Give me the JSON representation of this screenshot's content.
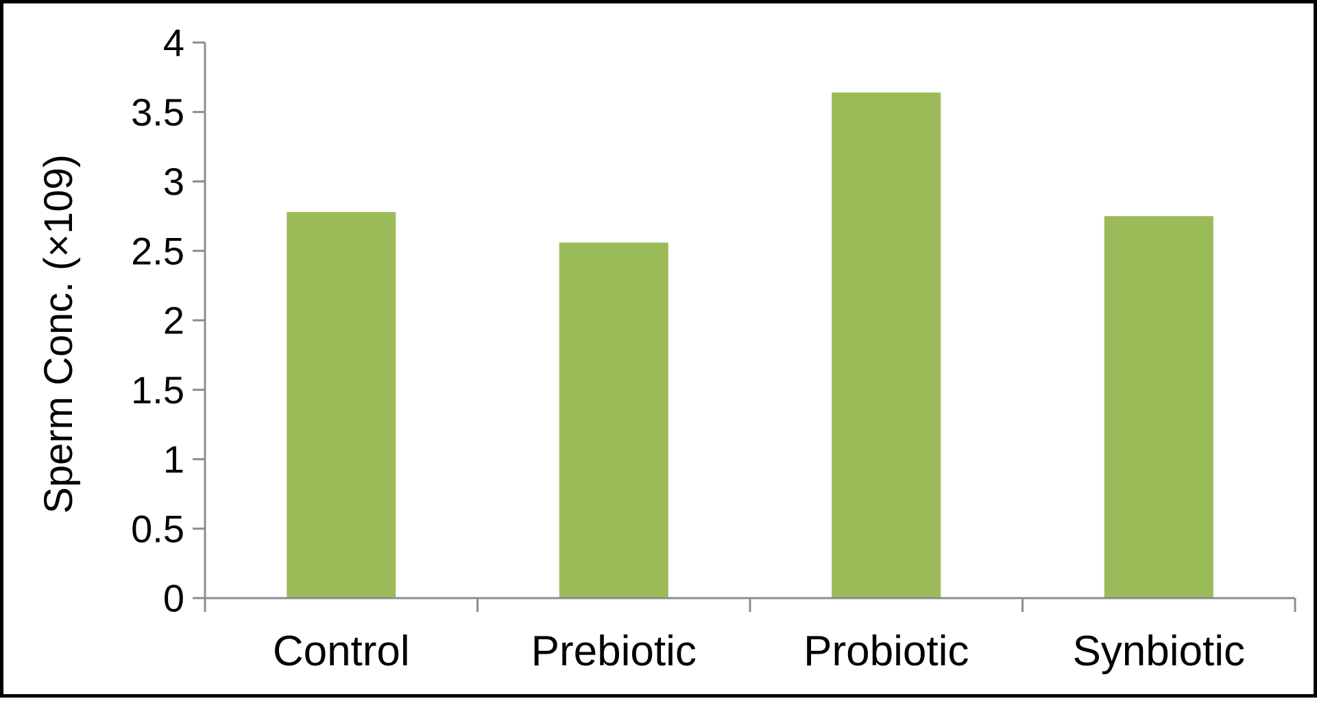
{
  "chart_data": {
    "type": "bar",
    "title": "",
    "xlabel": "",
    "ylabel": "Sperm Conc. (×109)",
    "categories": [
      "Control",
      "Prebiotic",
      "Probiotic",
      "Synbiotic"
    ],
    "values": [
      2.78,
      2.56,
      3.64,
      2.75
    ],
    "ylim": [
      0,
      4
    ],
    "yticks": [
      0,
      0.5,
      1,
      1.5,
      2,
      2.5,
      3,
      3.5,
      4
    ],
    "ytick_labels": [
      "0",
      "0.5",
      "1",
      "1.5",
      "2",
      "2.5",
      "3",
      "3.5",
      "4"
    ],
    "grid": false,
    "legend": "none",
    "colors": {
      "bar": "#9bbb59",
      "axis": "#8c8c8c",
      "text": "#000000",
      "border": "#000000"
    }
  }
}
